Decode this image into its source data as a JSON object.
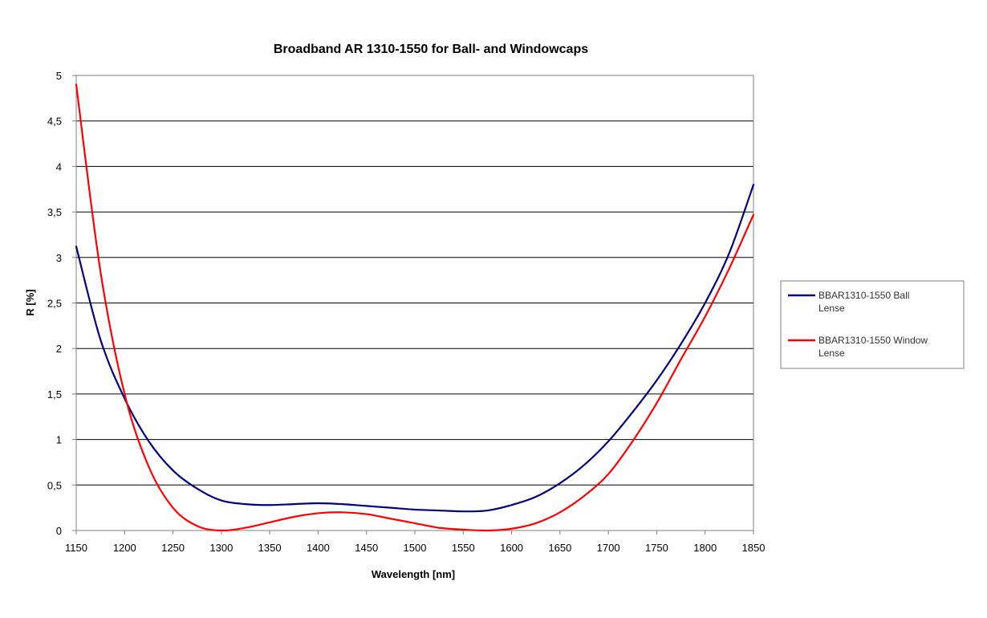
{
  "chart_data": {
    "type": "line",
    "title": "Broadband AR 1310-1550 for Ball- and Windowcaps",
    "xlabel": "Wavelength [nm]",
    "ylabel": "R [%]",
    "xlim": [
      1150,
      1850
    ],
    "ylim": [
      0,
      5
    ],
    "x_ticks": [
      1150,
      1200,
      1250,
      1300,
      1350,
      1400,
      1450,
      1500,
      1550,
      1600,
      1650,
      1700,
      1750,
      1800,
      1850
    ],
    "x_tick_labels": [
      "1150",
      "1200",
      "1250",
      "1300",
      "1350",
      "1400",
      "1450",
      "1500",
      "1550",
      "1600",
      "1650",
      "1700",
      "1750",
      "1800",
      "1850"
    ],
    "y_ticks": [
      0,
      0.5,
      1,
      1.5,
      2,
      2.5,
      3,
      3.5,
      4,
      4.5,
      5
    ],
    "y_tick_labels": [
      "0",
      "0,5",
      "1",
      "1,5",
      "2",
      "2,5",
      "3",
      "3,5",
      "4",
      "4,5",
      "5"
    ],
    "grid": "horizontal",
    "legend_position": "right",
    "series": [
      {
        "name_lines": [
          "BBAR1310-1550 Ball",
          "Lense"
        ],
        "color": "#000080",
        "x": [
          1150,
          1175,
          1200,
          1225,
          1250,
          1275,
          1300,
          1325,
          1350,
          1375,
          1400,
          1425,
          1450,
          1475,
          1500,
          1525,
          1550,
          1575,
          1600,
          1625,
          1650,
          1675,
          1700,
          1725,
          1750,
          1775,
          1800,
          1825,
          1850
        ],
        "y": [
          3.12,
          2.1,
          1.45,
          0.98,
          0.66,
          0.46,
          0.33,
          0.29,
          0.28,
          0.29,
          0.3,
          0.29,
          0.27,
          0.25,
          0.23,
          0.22,
          0.21,
          0.22,
          0.28,
          0.37,
          0.52,
          0.72,
          0.98,
          1.3,
          1.65,
          2.05,
          2.5,
          3.05,
          3.8
        ]
      },
      {
        "name_lines": [
          "BBAR1310-1550 Window",
          "Lense"
        ],
        "color": "#ff0000",
        "x": [
          1150,
          1175,
          1200,
          1225,
          1250,
          1275,
          1300,
          1325,
          1350,
          1375,
          1400,
          1425,
          1450,
          1475,
          1500,
          1525,
          1550,
          1575,
          1600,
          1625,
          1650,
          1675,
          1700,
          1725,
          1750,
          1775,
          1800,
          1825,
          1850
        ],
        "y": [
          4.9,
          2.85,
          1.5,
          0.7,
          0.25,
          0.05,
          0.0,
          0.03,
          0.09,
          0.15,
          0.19,
          0.2,
          0.18,
          0.13,
          0.08,
          0.03,
          0.01,
          0.0,
          0.02,
          0.08,
          0.2,
          0.38,
          0.62,
          0.98,
          1.4,
          1.88,
          2.35,
          2.88,
          3.47
        ]
      }
    ]
  }
}
